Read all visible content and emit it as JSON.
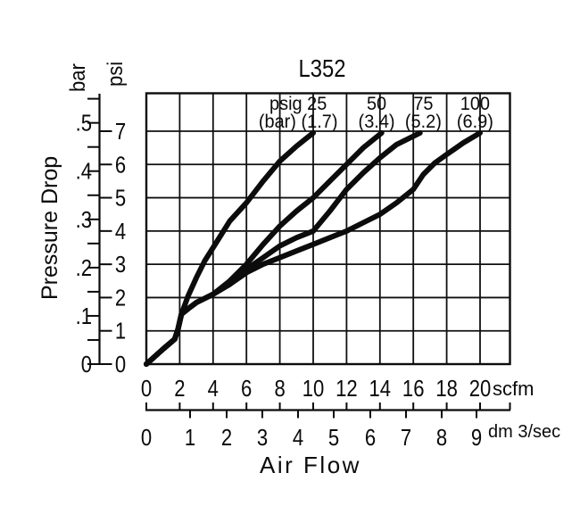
{
  "chart_data": {
    "type": "line",
    "title": "L352",
    "xlabel": "Air Flow",
    "ylabel": "Pressure Drop",
    "grid": true,
    "legend_position": "labels-above-curves",
    "x_axes": [
      {
        "unit": "scfm",
        "ticks": [
          0,
          2,
          4,
          6,
          8,
          10,
          12,
          14,
          16,
          18,
          20
        ]
      },
      {
        "unit": "dm 3/sec",
        "ticks": [
          0,
          1,
          2,
          3,
          4,
          5,
          6,
          7,
          8,
          9
        ]
      }
    ],
    "y_axes": [
      {
        "unit": "bar",
        "ticks": [
          "0",
          ".1",
          ".2",
          ".3",
          ".4",
          ".5"
        ],
        "minor_step": 0.05,
        "max_tick": 0.55
      },
      {
        "unit": "psi",
        "ticks": [
          0,
          1,
          2,
          3,
          4,
          5,
          6,
          7
        ]
      }
    ],
    "x_range_scfm": [
      0,
      21.8
    ],
    "y_range_psi": [
      0,
      8.15
    ],
    "series": [
      {
        "name": "psig 25 (1.7 bar)",
        "label": [
          "psig 25",
          "(bar) (1.7)"
        ],
        "label_x_scfm": 9.1,
        "points_scfm_psi": [
          [
            0,
            0
          ],
          [
            1.0,
            0.45
          ],
          [
            1.7,
            0.75
          ],
          [
            1.9,
            1.05
          ],
          [
            2.1,
            1.5
          ],
          [
            2.5,
            2.05
          ],
          [
            3,
            2.6
          ],
          [
            3.5,
            3.1
          ],
          [
            4,
            3.5
          ],
          [
            5,
            4.3
          ],
          [
            6,
            4.85
          ],
          [
            7,
            5.5
          ],
          [
            8,
            6.1
          ],
          [
            9,
            6.55
          ],
          [
            10,
            6.95
          ]
        ]
      },
      {
        "name": "psig 50 (3.4 bar)",
        "label": [
          "50",
          "(3.4)"
        ],
        "label_x_scfm": 13.8,
        "points_scfm_psi": [
          [
            0,
            0
          ],
          [
            1.0,
            0.45
          ],
          [
            1.7,
            0.75
          ],
          [
            1.9,
            1.05
          ],
          [
            2.1,
            1.5
          ],
          [
            2.6,
            1.7
          ],
          [
            3,
            1.85
          ],
          [
            4,
            2.1
          ],
          [
            5,
            2.5
          ],
          [
            6,
            3.0
          ],
          [
            7,
            3.6
          ],
          [
            8,
            4.15
          ],
          [
            9,
            4.6
          ],
          [
            10,
            5.0
          ],
          [
            11,
            5.5
          ],
          [
            12,
            6.0
          ],
          [
            13,
            6.5
          ],
          [
            14.1,
            6.95
          ]
        ]
      },
      {
        "name": "psig 75 (5.2 bar)",
        "label": [
          "75",
          "(5.2)"
        ],
        "label_x_scfm": 16.6,
        "points_scfm_psi": [
          [
            0,
            0
          ],
          [
            1.0,
            0.45
          ],
          [
            1.7,
            0.75
          ],
          [
            1.9,
            1.05
          ],
          [
            2.1,
            1.5
          ],
          [
            2.6,
            1.7
          ],
          [
            3,
            1.85
          ],
          [
            4,
            2.1
          ],
          [
            5,
            2.4
          ],
          [
            6,
            2.85
          ],
          [
            7,
            3.2
          ],
          [
            8,
            3.55
          ],
          [
            9,
            3.8
          ],
          [
            10,
            4.0
          ],
          [
            11,
            4.6
          ],
          [
            12,
            5.25
          ],
          [
            13,
            5.75
          ],
          [
            14,
            6.2
          ],
          [
            15,
            6.6
          ],
          [
            16.4,
            6.95
          ]
        ]
      },
      {
        "name": "psig 100 (6.9 bar)",
        "label": [
          "100",
          "(6.9)"
        ],
        "label_x_scfm": 19.7,
        "points_scfm_psi": [
          [
            0,
            0
          ],
          [
            1.0,
            0.45
          ],
          [
            1.7,
            0.75
          ],
          [
            1.9,
            1.05
          ],
          [
            2.1,
            1.5
          ],
          [
            2.6,
            1.7
          ],
          [
            3,
            1.85
          ],
          [
            4,
            2.1
          ],
          [
            5,
            2.4
          ],
          [
            6,
            2.75
          ],
          [
            7,
            3.0
          ],
          [
            8,
            3.2
          ],
          [
            9,
            3.4
          ],
          [
            10,
            3.6
          ],
          [
            11,
            3.8
          ],
          [
            12,
            4.0
          ],
          [
            13,
            4.25
          ],
          [
            14,
            4.5
          ],
          [
            15,
            4.85
          ],
          [
            16,
            5.25
          ],
          [
            16.6,
            5.7
          ],
          [
            17.3,
            6.05
          ],
          [
            18,
            6.3
          ],
          [
            19,
            6.65
          ],
          [
            20,
            6.95
          ]
        ]
      }
    ]
  }
}
